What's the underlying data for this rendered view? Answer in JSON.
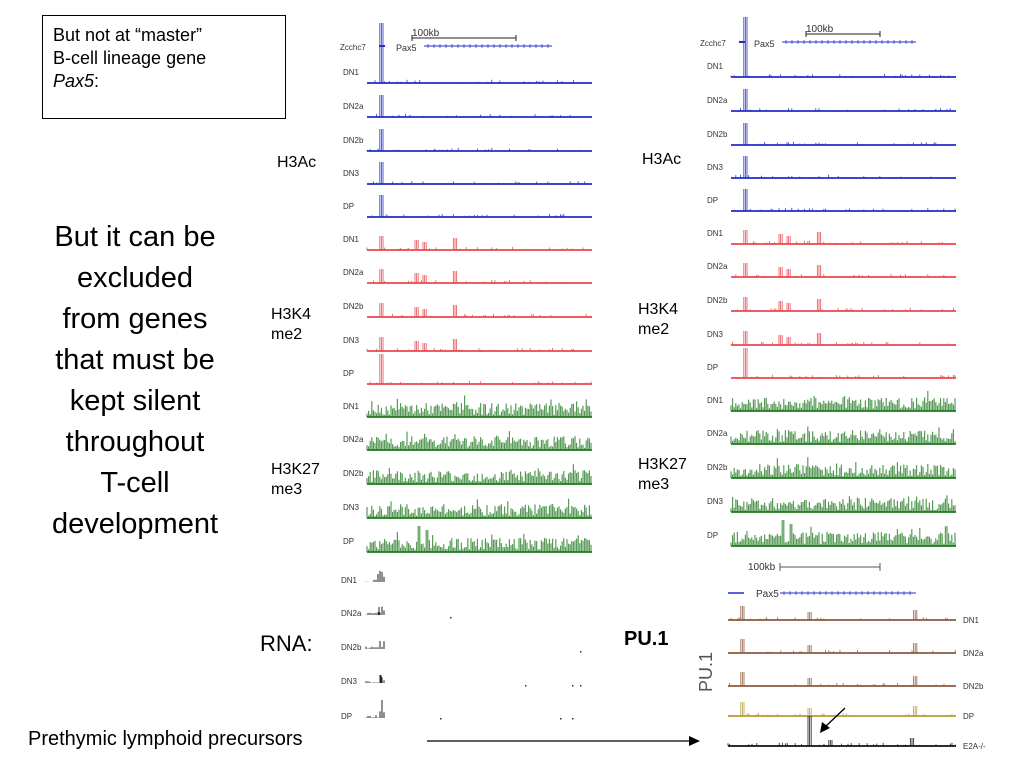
{
  "callout": {
    "line1": "But not at “master”",
    "line2": "B-cell lineage gene",
    "gene": "Pax5",
    "colon": ":"
  },
  "main_text": [
    "But it can be",
    "excluded",
    "from genes",
    "that must be",
    "kept silent",
    "throughout",
    "T-cell",
    "development"
  ],
  "marks": {
    "h3ac": "H3Ac",
    "h3k4_a": "H3K4",
    "h3k4_b": "me2",
    "h3k27_a": "H3K27",
    "h3k27_b": "me3"
  },
  "rna_label": "RNA:",
  "pu1_label": "PU.1",
  "pu1_axis": "PU.1",
  "footer_text": "Prethymic lymphoid precursors",
  "scale_label": "100kb",
  "gene_labels": {
    "zcchc7": "Zcchc7",
    "pax5": "Pax5"
  },
  "stages": [
    "DN1",
    "DN2a",
    "DN2b",
    "DN3",
    "DP"
  ],
  "pu1_tracks": [
    "DN1",
    "DN2a",
    "DN2b",
    "DP",
    "E2A-/-"
  ],
  "colors": {
    "h3ac": "#1f2dc8",
    "h3k4": "#e8474e",
    "h3k27": "#1e7a1e",
    "rna": "#222222",
    "pu1": "#8b5a3c",
    "pu1_dp": "#b89a3a",
    "pu1_e2a": "#111111"
  }
}
